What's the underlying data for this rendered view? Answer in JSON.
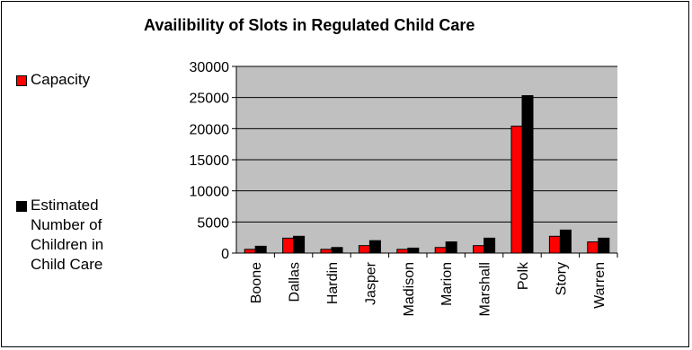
{
  "chart_data": {
    "type": "bar",
    "title": "Availibility of Slots in Regulated Child Care",
    "categories": [
      "Boone",
      "Dallas",
      "Hardin",
      "Jasper",
      "Madison",
      "Marion",
      "Marshall",
      "Polk",
      "Story",
      "Warren"
    ],
    "series": [
      {
        "name": "Capacity",
        "color": "#ff0000",
        "values": [
          600,
          2400,
          600,
          1200,
          600,
          900,
          1200,
          20400,
          2700,
          1800
        ]
      },
      {
        "name": "Estimated Number of Children in Child Care",
        "color": "#000000",
        "values": [
          1100,
          2700,
          900,
          2000,
          800,
          1800,
          2400,
          25300,
          3700,
          2400
        ]
      }
    ],
    "xlabel": "",
    "ylabel": "",
    "ylim": [
      0,
      30000
    ],
    "yticks": [
      0,
      5000,
      10000,
      15000,
      20000,
      25000,
      30000
    ],
    "grid": true,
    "legend_position": "left",
    "plot_background": "#c0c0c0"
  },
  "legend": {
    "capacity_label": "Capacity",
    "estimate_lines": [
      "Estimated",
      "Number of",
      "Children in",
      "Child Care"
    ]
  }
}
